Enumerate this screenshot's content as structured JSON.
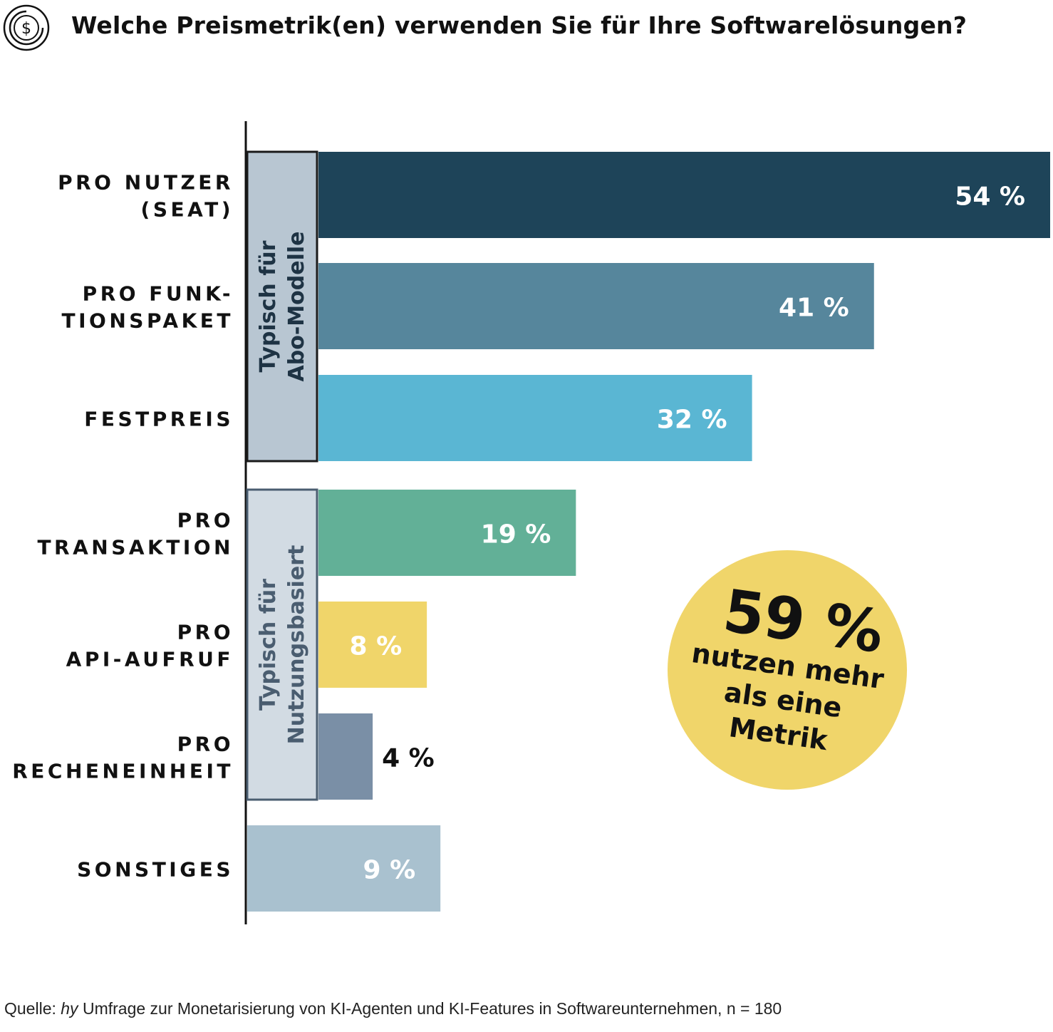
{
  "header": {
    "icon": "dollar-coin-icon",
    "title": "Welche Preismetrik(en) verwenden Sie für Ihre Softwarelösungen?"
  },
  "chart_data": {
    "type": "bar",
    "orientation": "horizontal",
    "title": "Welche Preismetrik(en) verwenden Sie für Ihre Softwarelösungen?",
    "xlim": [
      0,
      54
    ],
    "grid": false,
    "categories": [
      [
        "PRO NUTZER",
        "(SEAT)"
      ],
      [
        "PRO FUNK-",
        "TIONSPAKET"
      ],
      [
        "FESTPREIS"
      ],
      [
        "PRO",
        "TRANSAKTION"
      ],
      [
        "PRO",
        "API-AUFRUF"
      ],
      [
        "PRO",
        "RECHENEINHEIT"
      ],
      [
        "SONSTIGES"
      ]
    ],
    "values": [
      54,
      41,
      32,
      19,
      8,
      4,
      9
    ],
    "value_labels": [
      "54 %",
      "41 %",
      "32 %",
      "19 %",
      "8 %",
      "4 %",
      "9 %"
    ],
    "bar_colors": [
      "#1e4459",
      "#56869c",
      "#5ab6d3",
      "#62b097",
      "#f0d56a",
      "#7a8fa6",
      "#a9c1cf"
    ],
    "label_colors": [
      "#ffffff",
      "#ffffff",
      "#ffffff",
      "#ffffff",
      "#ffffff",
      "#111111",
      "#ffffff"
    ],
    "groups": [
      {
        "lines": [
          "Typisch für",
          "Abo-Modelle"
        ],
        "bars": [
          0,
          2
        ],
        "fill": "#b8c6d2",
        "border": "#1a1a1a",
        "text_color": "#1e3344"
      },
      {
        "lines": [
          "Typisch für",
          "Nutzungsbasiert"
        ],
        "bars": [
          3,
          5
        ],
        "fill": "#d2dbe3",
        "border": "#4a5d70",
        "text_color": "#4a5d70"
      }
    ],
    "annotation": {
      "big": "59 %",
      "lines": [
        "nutzen mehr",
        "als eine",
        "Metrik"
      ],
      "fill": "#f0d56a",
      "text_color": "#111111"
    }
  },
  "source": {
    "prefix": "Quelle: ",
    "italic": "hy",
    "rest": " Umfrage zur Monetarisierung von KI-Agenten und KI-Features in Softwareunternehmen, n = 180"
  }
}
